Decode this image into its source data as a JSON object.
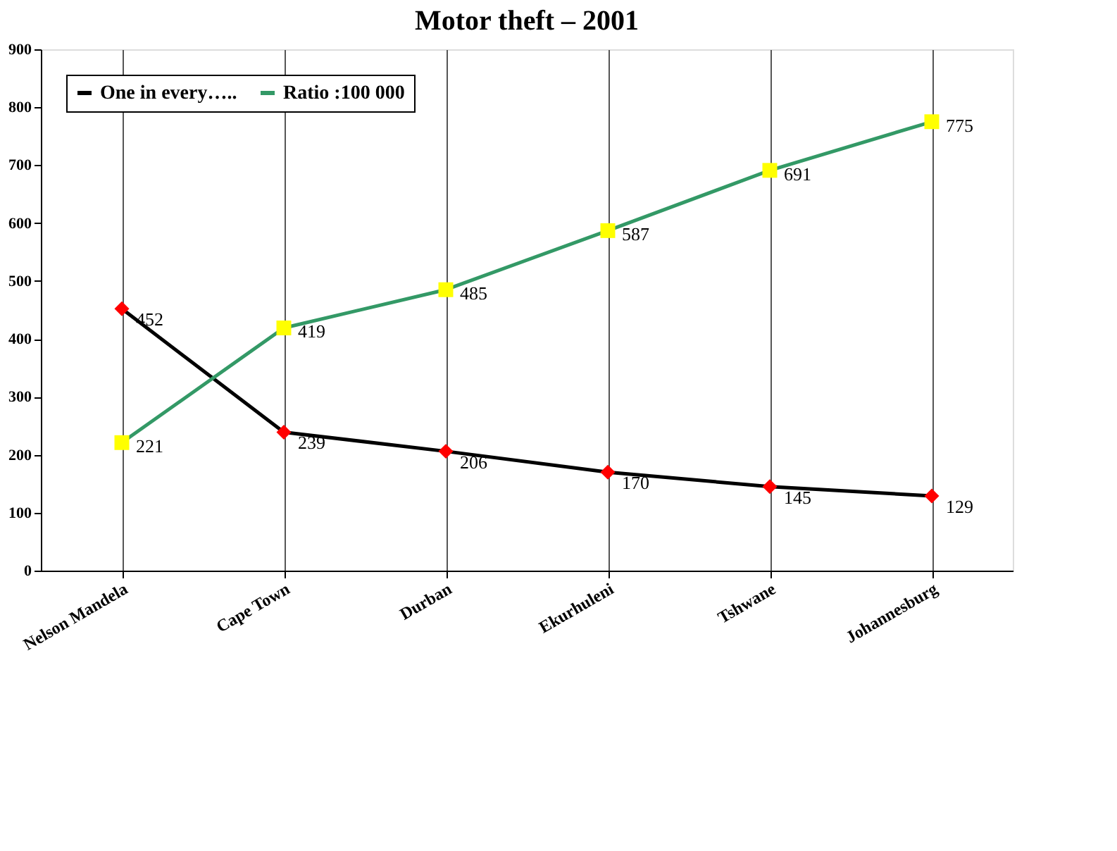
{
  "chart_data": {
    "type": "line",
    "title": "Motor theft – 2001",
    "categories": [
      "Nelson Mandela",
      "Cape Town",
      "Durban",
      "Ekurhuleni",
      "Tshwane",
      "Johannesburg"
    ],
    "series": [
      {
        "name": "One in every…..",
        "color": "#000000",
        "colors": [
          "#ff0000",
          "#ff0000",
          "#ff0000",
          "#ff0000",
          "#ff0000",
          "#ff0000"
        ],
        "marker": "diamond",
        "values": [
          452,
          239,
          206,
          170,
          145,
          129
        ]
      },
      {
        "name": "Ratio :100 000",
        "color": "#339966",
        "colors": [
          "#ffff00",
          "#ffff00",
          "#ffff00",
          "#ffff00",
          "#ffff00",
          "#ffff00"
        ],
        "marker": "square",
        "values": [
          221,
          419,
          485,
          587,
          691,
          775
        ]
      }
    ],
    "ylim": [
      0,
      900
    ],
    "yticks": [
      0,
      100,
      200,
      300,
      400,
      500,
      600,
      700,
      800,
      900
    ],
    "grid": "x",
    "legend": "top left",
    "data_labels": true,
    "line_style": "solid"
  }
}
